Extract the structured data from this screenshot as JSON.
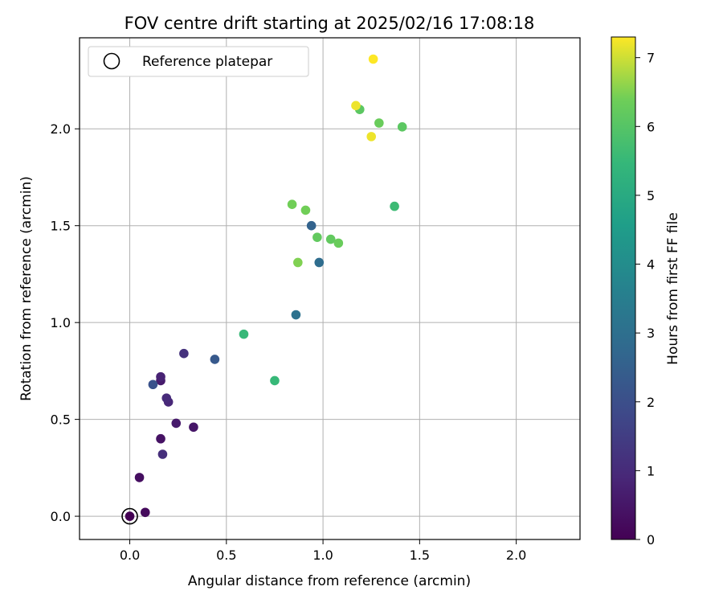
{
  "chart_data": {
    "type": "scatter",
    "title": "FOV centre drift starting at 2025/02/16 17:08:18",
    "xlabel": "Angular distance from reference (arcmin)",
    "ylabel": "Rotation from reference (arcmin)",
    "xlim": [
      -0.26,
      2.33
    ],
    "ylim": [
      -0.12,
      2.47
    ],
    "xticks": [
      0.0,
      0.5,
      1.0,
      1.5,
      2.0
    ],
    "yticks": [
      0.0,
      0.5,
      1.0,
      1.5,
      2.0
    ],
    "xtick_labels": [
      "0.0",
      "0.5",
      "1.0",
      "1.5",
      "2.0"
    ],
    "ytick_labels": [
      "0.0",
      "0.5",
      "1.0",
      "1.5",
      "2.0"
    ],
    "grid": true,
    "legend": {
      "placement": "top-left",
      "entries": [
        {
          "label": "Reference platepar",
          "marker": "open-circle",
          "x": 0.0,
          "y": 0.0
        }
      ]
    },
    "colorbar": {
      "label": "Hours from first FF file",
      "colormap": "viridis",
      "range": [
        0,
        7.3
      ],
      "ticks": [
        0,
        1,
        2,
        3,
        4,
        5,
        6,
        7
      ],
      "tick_labels": [
        "0",
        "1",
        "2",
        "3",
        "4",
        "5",
        "6",
        "7"
      ]
    },
    "points": [
      {
        "x": 0.0,
        "y": 0.0,
        "hours": 0.0
      },
      {
        "x": 0.08,
        "y": 0.02,
        "hours": 0.2
      },
      {
        "x": 0.05,
        "y": 0.2,
        "hours": 0.3
      },
      {
        "x": 0.16,
        "y": 0.4,
        "hours": 0.4
      },
      {
        "x": 0.33,
        "y": 0.46,
        "hours": 0.5
      },
      {
        "x": 0.24,
        "y": 0.48,
        "hours": 0.6
      },
      {
        "x": 0.16,
        "y": 0.7,
        "hours": 0.6
      },
      {
        "x": 0.16,
        "y": 0.72,
        "hours": 0.8
      },
      {
        "x": 0.2,
        "y": 0.59,
        "hours": 0.9
      },
      {
        "x": 0.19,
        "y": 0.61,
        "hours": 1.0
      },
      {
        "x": 0.17,
        "y": 0.32,
        "hours": 1.1
      },
      {
        "x": 0.28,
        "y": 0.84,
        "hours": 1.2
      },
      {
        "x": 0.12,
        "y": 0.68,
        "hours": 2.1
      },
      {
        "x": 0.44,
        "y": 0.81,
        "hours": 2.3
      },
      {
        "x": 0.94,
        "y": 1.5,
        "hours": 2.6
      },
      {
        "x": 0.98,
        "y": 1.31,
        "hours": 2.9
      },
      {
        "x": 0.86,
        "y": 1.04,
        "hours": 3.1
      },
      {
        "x": 0.59,
        "y": 0.94,
        "hours": 5.5
      },
      {
        "x": 0.75,
        "y": 0.7,
        "hours": 5.5
      },
      {
        "x": 1.37,
        "y": 1.6,
        "hours": 5.6
      },
      {
        "x": 1.41,
        "y": 2.01,
        "hours": 6.1
      },
      {
        "x": 1.19,
        "y": 2.1,
        "hours": 6.1
      },
      {
        "x": 0.97,
        "y": 1.44,
        "hours": 6.2
      },
      {
        "x": 1.04,
        "y": 1.43,
        "hours": 6.2
      },
      {
        "x": 1.08,
        "y": 1.41,
        "hours": 6.3
      },
      {
        "x": 1.29,
        "y": 2.03,
        "hours": 6.3
      },
      {
        "x": 0.84,
        "y": 1.61,
        "hours": 6.4
      },
      {
        "x": 0.91,
        "y": 1.58,
        "hours": 6.4
      },
      {
        "x": 0.87,
        "y": 1.31,
        "hours": 6.5
      },
      {
        "x": 1.17,
        "y": 2.12,
        "hours": 7.2
      },
      {
        "x": 1.25,
        "y": 1.96,
        "hours": 7.2
      },
      {
        "x": 1.26,
        "y": 2.36,
        "hours": 7.3
      }
    ]
  }
}
